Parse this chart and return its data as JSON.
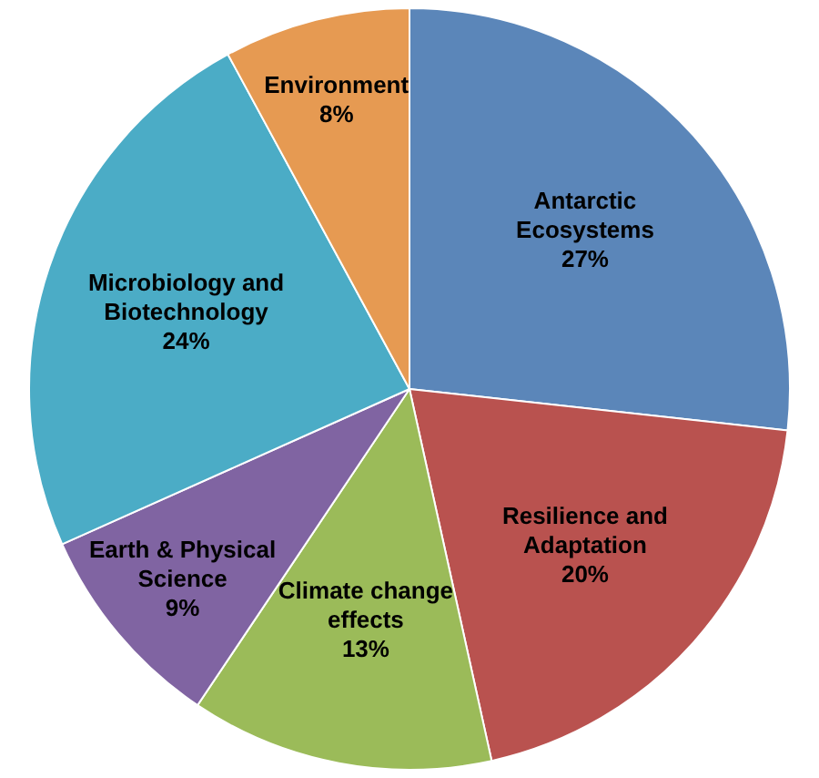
{
  "chart_data": {
    "type": "pie",
    "categories": [
      "Antarctic Ecosystems",
      "Resilience and Adaptation",
      "Climate change effects",
      "Earth & Physical Science",
      "Microbiology and Biotechnology",
      "Environment"
    ],
    "values": [
      27,
      20,
      13,
      9,
      24,
      8
    ],
    "value_labels": [
      "27%",
      "20%",
      "13%",
      "9%",
      "24%",
      "8%"
    ],
    "colors": [
      "#5b86b9",
      "#b9524f",
      "#9bbb59",
      "#8064a2",
      "#4bacc6",
      "#e69a52"
    ],
    "legend": false
  }
}
